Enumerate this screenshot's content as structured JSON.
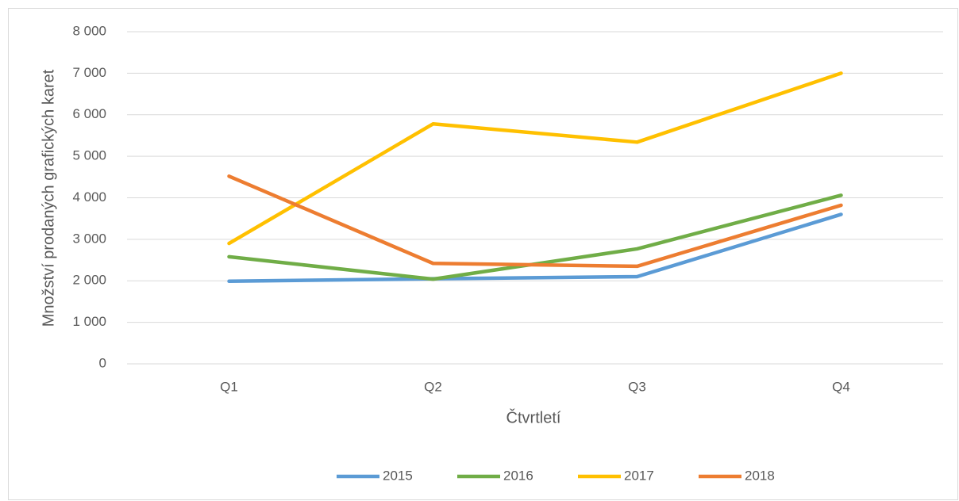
{
  "chart_data": {
    "type": "line",
    "x_label": "Čtvrtletí",
    "y_label": "Množství prodaných grafických karet",
    "categories": [
      "Q1",
      "Q2",
      "Q3",
      "Q4"
    ],
    "series": [
      {
        "name": "2015",
        "color": "#5b9bd5",
        "values": [
          1990,
          2050,
          2100,
          3600
        ]
      },
      {
        "name": "2016",
        "color": "#70ad47",
        "values": [
          2580,
          2040,
          2770,
          4060
        ]
      },
      {
        "name": "2017",
        "color": "#ffc000",
        "values": [
          2900,
          5780,
          5340,
          7000
        ]
      },
      {
        "name": "2018",
        "color": "#ed7d31",
        "values": [
          4520,
          2420,
          2350,
          3820
        ]
      }
    ],
    "ylim": [
      0,
      8000
    ],
    "yticks": [
      0,
      {
        "value": 1000,
        "label": "1 000"
      },
      {
        "value": 2000,
        "label": "2 000"
      },
      {
        "value": 3000,
        "label": "3 000"
      },
      {
        "value": 4000,
        "label": "4 000"
      },
      {
        "value": 5000,
        "label": "5 000"
      },
      {
        "value": 6000,
        "label": "6 000"
      },
      {
        "value": 7000,
        "label": "7 000"
      },
      {
        "value": 8000,
        "label": "8 000"
      }
    ],
    "grid": true,
    "legend": "bottom"
  }
}
